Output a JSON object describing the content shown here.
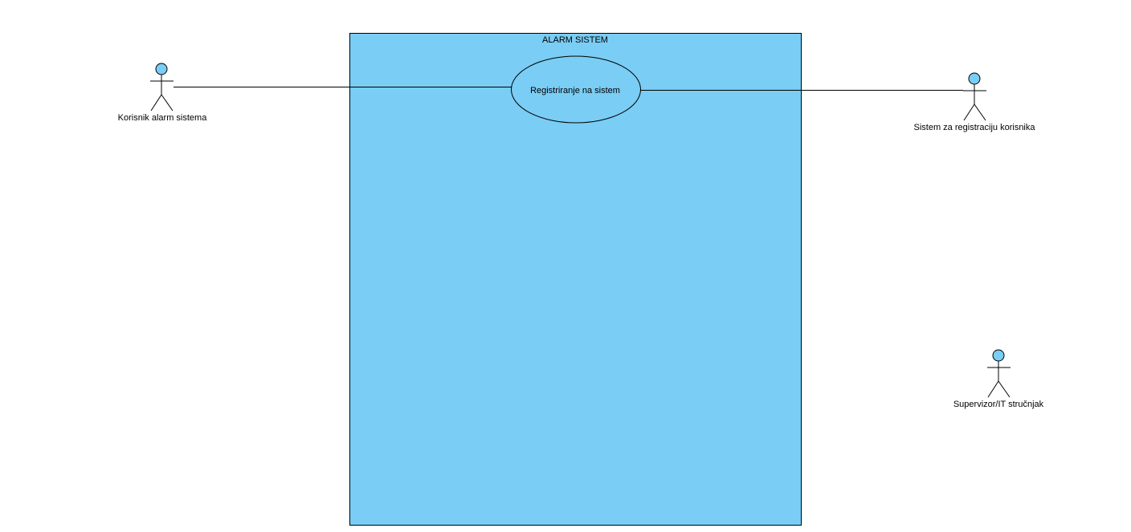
{
  "colors": {
    "background": "#ffffff",
    "system_fill": "#7acdf4",
    "actor_head_fill": "#7acdf4",
    "stroke": "#000000"
  },
  "system_boundary": {
    "title": "ALARM SISTEM"
  },
  "use_cases": [
    {
      "label": "Registriranje na sistem"
    }
  ],
  "actors": [
    {
      "label": "Korisnik alarm sistema"
    },
    {
      "label": "Sistem za registraciju korisnika"
    },
    {
      "label": "Supervizor/IT stručnjak"
    }
  ]
}
